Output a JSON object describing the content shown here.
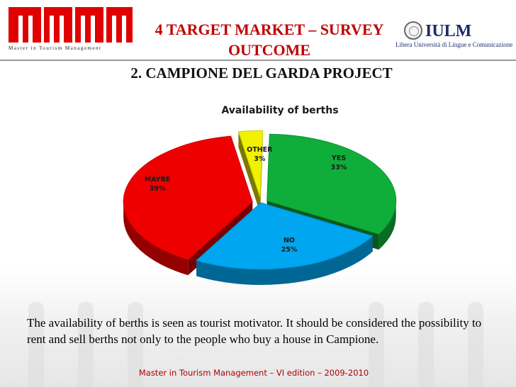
{
  "header": {
    "logo_caption": "Master in Tourism Management",
    "title_line1": "4 TARGET MARKET – SURVEY",
    "title_line2": "OUTCOME",
    "iulm_name": "IULM",
    "iulm_subtitle": "Libera Università di Lingue e Comunicazione"
  },
  "subtitle": "2. CAMPIONE DEL GARDA PROJECT",
  "chart_data": {
    "type": "pie",
    "title": "Availability of berths",
    "slices": [
      {
        "label": "YES",
        "value": 33,
        "display": "33%",
        "color": "#0fae3a"
      },
      {
        "label": "NO",
        "value": 25,
        "display": "25%",
        "color": "#00a6ef"
      },
      {
        "label": "MAYBE",
        "value": 39,
        "display": "39%",
        "color": "#ef0000"
      },
      {
        "label": "OTHER",
        "value": 3,
        "display": "3%",
        "color": "#f2f200"
      }
    ],
    "style": "3d-exploded",
    "legend": "none"
  },
  "caption": "The availability of  berths is seen as tourist motivator. It should be considered the possibility to rent and sell berths not only to the people who buy a house in Campione.",
  "footer": "Master in Tourism Management – VI edition – 2009-2010"
}
